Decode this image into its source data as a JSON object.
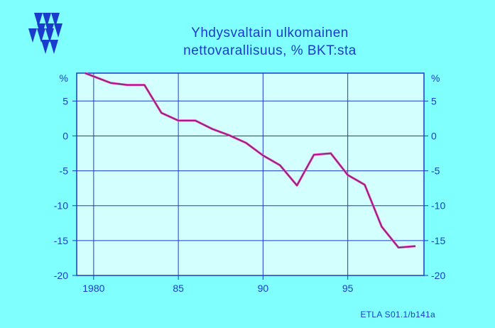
{
  "title_line1": "Yhdysvaltain  ulkomainen",
  "title_line2": "nettovarallisuus,  %  BKT:sta",
  "source": "ETLA S01.1/b141a",
  "colors": {
    "background": "#80ffff",
    "plot_area": "#d4ffff",
    "axis": "#1a3ccc",
    "line": "#7a2a6a"
  },
  "chart_data": {
    "type": "line",
    "title": "Yhdysvaltain ulkomainen nettovarallisuus, % BKT:sta",
    "ylabel": "%",
    "ylabel_right": "%",
    "xlim": [
      1979,
      1999.5
    ],
    "ylim": [
      -20,
      9
    ],
    "x_ticks": [
      1980,
      1985,
      1990,
      1995
    ],
    "x_tick_labels": [
      "1980",
      "85",
      "90",
      "95"
    ],
    "y_ticks": [
      5,
      0,
      -5,
      -10,
      -15,
      -20
    ],
    "y_tick_labels": [
      "5",
      "0",
      "-5",
      "-10",
      "-15",
      "-20"
    ],
    "grid": true,
    "x": [
      1979.5,
      1981,
      1982,
      1983,
      1984,
      1985,
      1986,
      1987,
      1988,
      1989,
      1990,
      1991,
      1992,
      1993,
      1994,
      1995,
      1996,
      1997,
      1998,
      1999
    ],
    "series": [
      {
        "values": [
          9.0,
          7.6,
          7.3,
          7.3,
          3.3,
          2.2,
          2.2,
          1.0,
          0.1,
          -1.0,
          -2.8,
          -4.2,
          -7.1,
          -2.7,
          -2.5,
          -5.6,
          -7.0,
          -13.0,
          -16.0,
          -15.8
        ]
      }
    ]
  }
}
